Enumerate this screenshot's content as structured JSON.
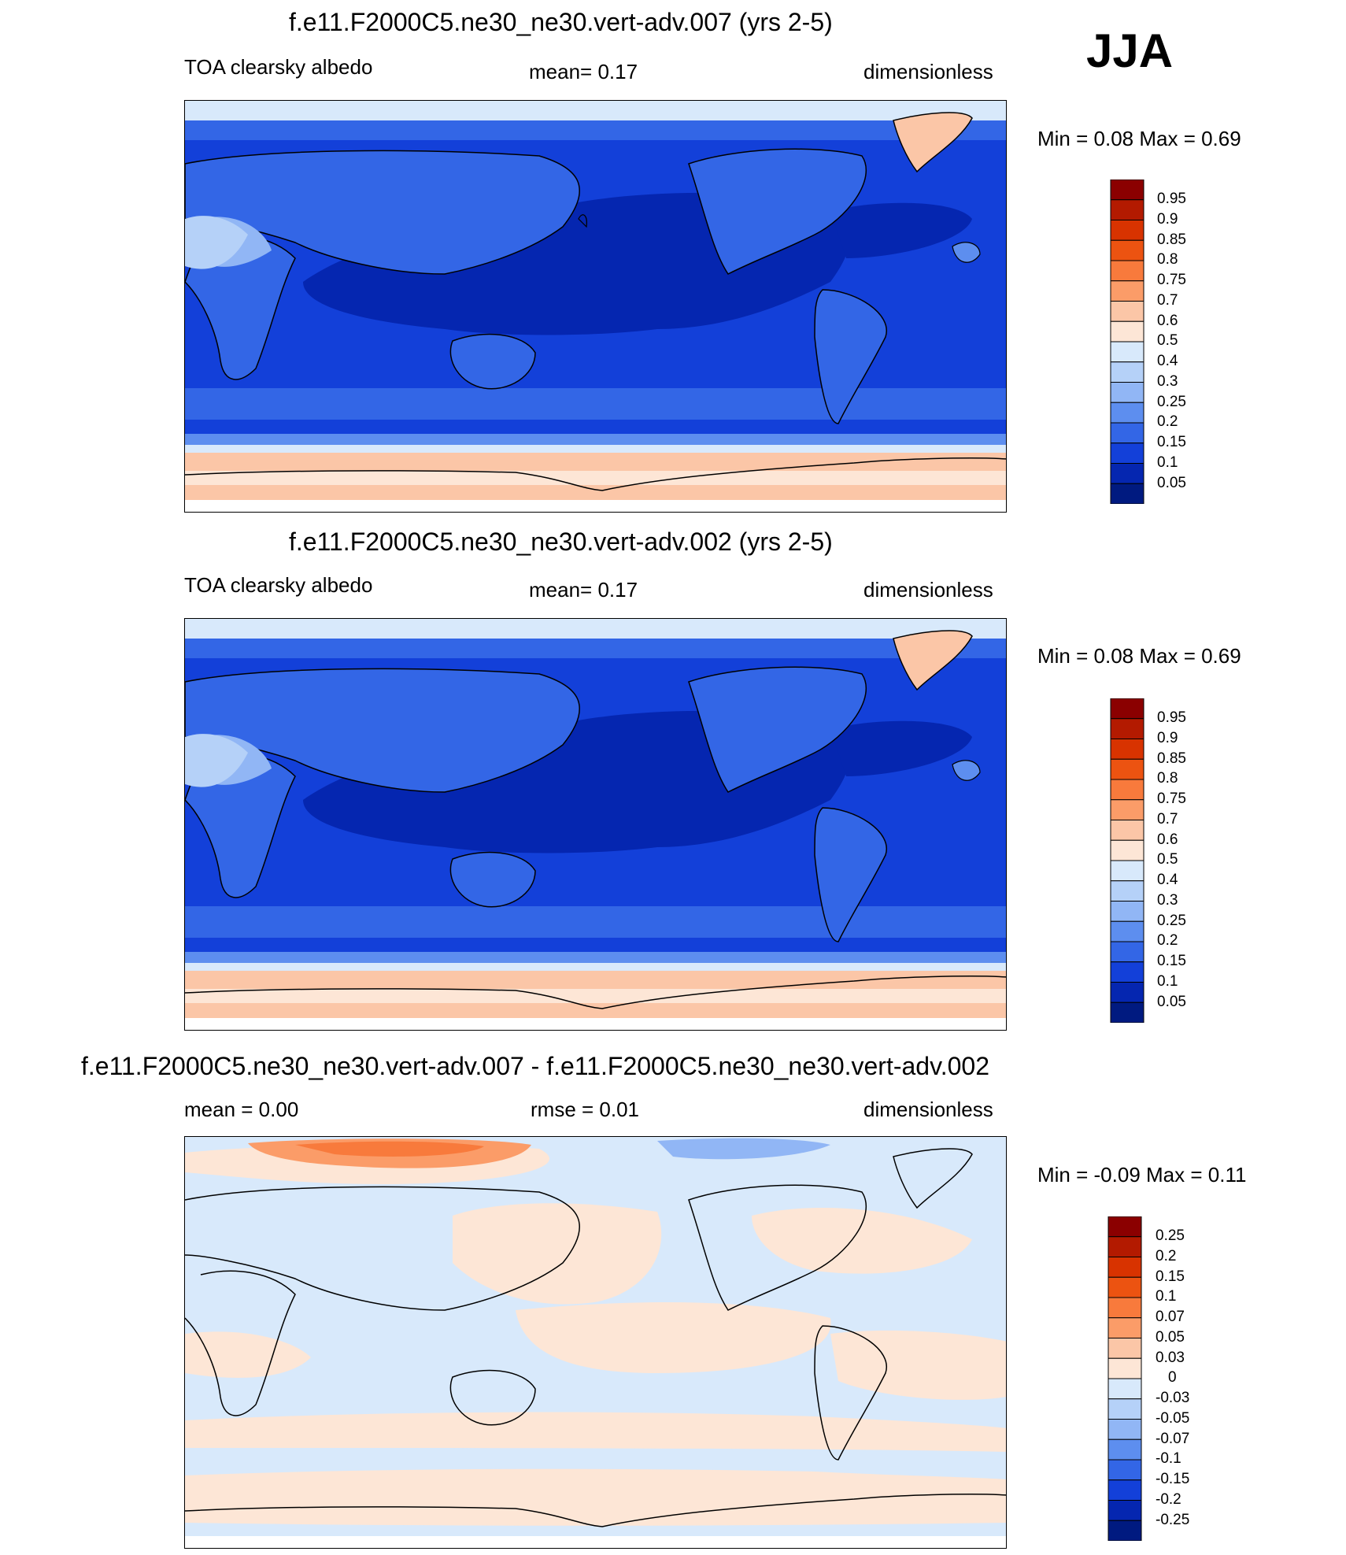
{
  "season": "JJA",
  "panels": [
    {
      "title": "f.e11.F2000C5.ne30_ne30.vert-adv.007 (yrs 2-5)",
      "left_label": "TOA clearsky albedo",
      "center_label": "mean=   0.17",
      "right_label": "dimensionless",
      "minmax": "Min =    0.08 Max =    0.69",
      "colorbar_labels": [
        "0.95",
        "0.9",
        "0.85",
        "0.8",
        "0.75",
        "0.7",
        "0.6",
        "0.5",
        "0.4",
        "0.3",
        "0.25",
        "0.2",
        "0.15",
        "0.1",
        "0.05"
      ],
      "colorbar_colors": [
        "#8b0000",
        "#b31a00",
        "#d83300",
        "#ec5311",
        "#f87a3c",
        "#fb9c68",
        "#fbc6a7",
        "#fde6d6",
        "#d8e9fb",
        "#b5d1f8",
        "#91b6f5",
        "#5d8eef",
        "#3366e6",
        "#1340d9",
        "#0526b0",
        "#001a80"
      ]
    },
    {
      "title": "f.e11.F2000C5.ne30_ne30.vert-adv.002 (yrs 2-5)",
      "left_label": "TOA clearsky albedo",
      "center_label": "mean=   0.17",
      "right_label": "dimensionless",
      "minmax": "Min =    0.08 Max =    0.69",
      "colorbar_labels": [
        "0.95",
        "0.9",
        "0.85",
        "0.8",
        "0.75",
        "0.7",
        "0.6",
        "0.5",
        "0.4",
        "0.3",
        "0.25",
        "0.2",
        "0.15",
        "0.1",
        "0.05"
      ],
      "colorbar_colors": [
        "#8b0000",
        "#b31a00",
        "#d83300",
        "#ec5311",
        "#f87a3c",
        "#fb9c68",
        "#fbc6a7",
        "#fde6d6",
        "#d8e9fb",
        "#b5d1f8",
        "#91b6f5",
        "#5d8eef",
        "#3366e6",
        "#1340d9",
        "#0526b0",
        "#001a80"
      ]
    },
    {
      "title": "f.e11.F2000C5.ne30_ne30.vert-adv.007 - f.e11.F2000C5.ne30_ne30.vert-adv.002",
      "left_label": "mean =    0.00",
      "center_label": "rmse =    0.01",
      "right_label": "dimensionless",
      "minmax": "Min =  -0.09 Max =    0.11",
      "colorbar_labels": [
        "0.25",
        "0.2",
        "0.15",
        "0.1",
        "0.07",
        "0.05",
        "0.03",
        "0",
        "-0.03",
        "-0.05",
        "-0.07",
        "-0.1",
        "-0.15",
        "-0.2",
        "-0.25"
      ],
      "colorbar_colors": [
        "#8b0000",
        "#b31a00",
        "#d83300",
        "#ec5311",
        "#f87a3c",
        "#fb9c68",
        "#fbc6a7",
        "#fde6d6",
        "#d8e9fb",
        "#b5d1f8",
        "#91b6f5",
        "#5d8eef",
        "#3366e6",
        "#1340d9",
        "#0526b0",
        "#001a80"
      ]
    }
  ]
}
